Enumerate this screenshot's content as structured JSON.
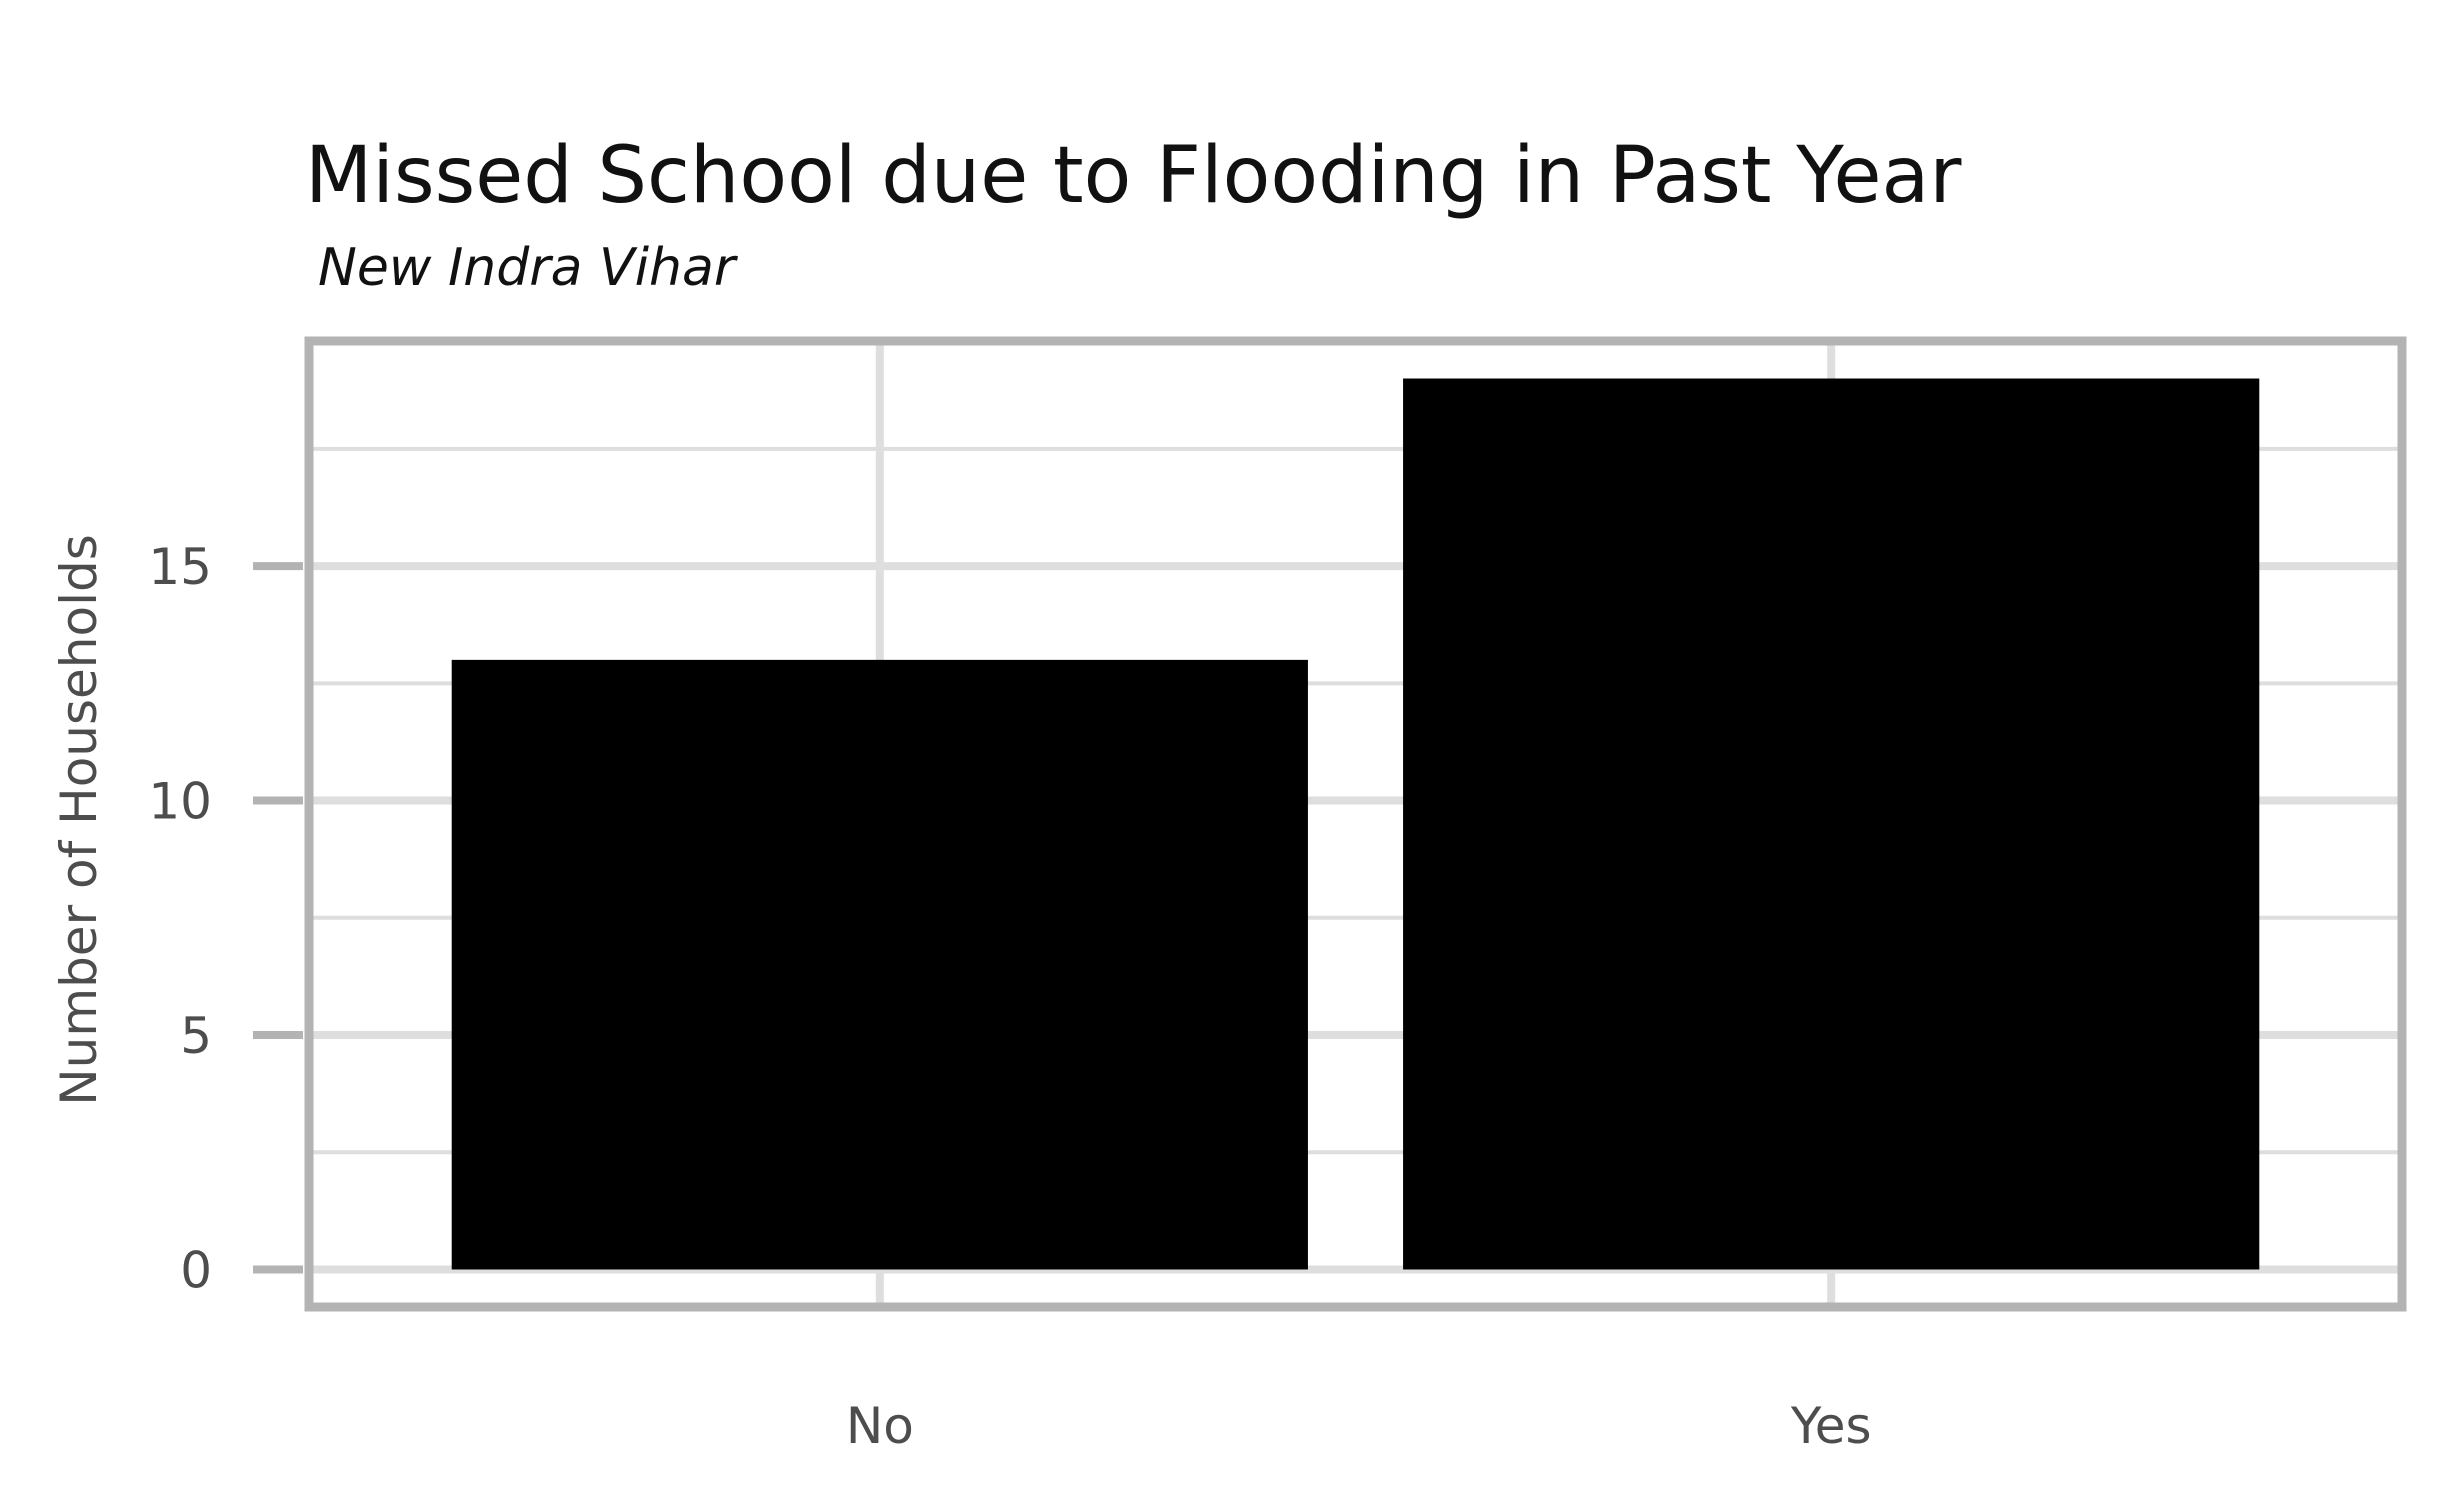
{
  "chart_data": {
    "type": "bar",
    "title": "Missed School due to Flooding in Past Year",
    "subtitle": "New Indra Vihar",
    "xlabel": "",
    "ylabel": "Number of Households",
    "categories": [
      "No",
      "Yes"
    ],
    "values": [
      13,
      19
    ],
    "ylim": [
      -0.8,
      19.8
    ],
    "y_ticks": [
      0,
      5,
      10,
      15
    ],
    "y_tick_labels": [
      "0",
      "5",
      "10",
      "15"
    ],
    "grid": true,
    "legend": "none",
    "colors": {
      "bar": "#000000",
      "grid": "#dedede",
      "panel_border": "#b3b3b3",
      "tick": "#b3b3b3",
      "axis_text": "#4d4d4d",
      "title": "#111111"
    }
  }
}
